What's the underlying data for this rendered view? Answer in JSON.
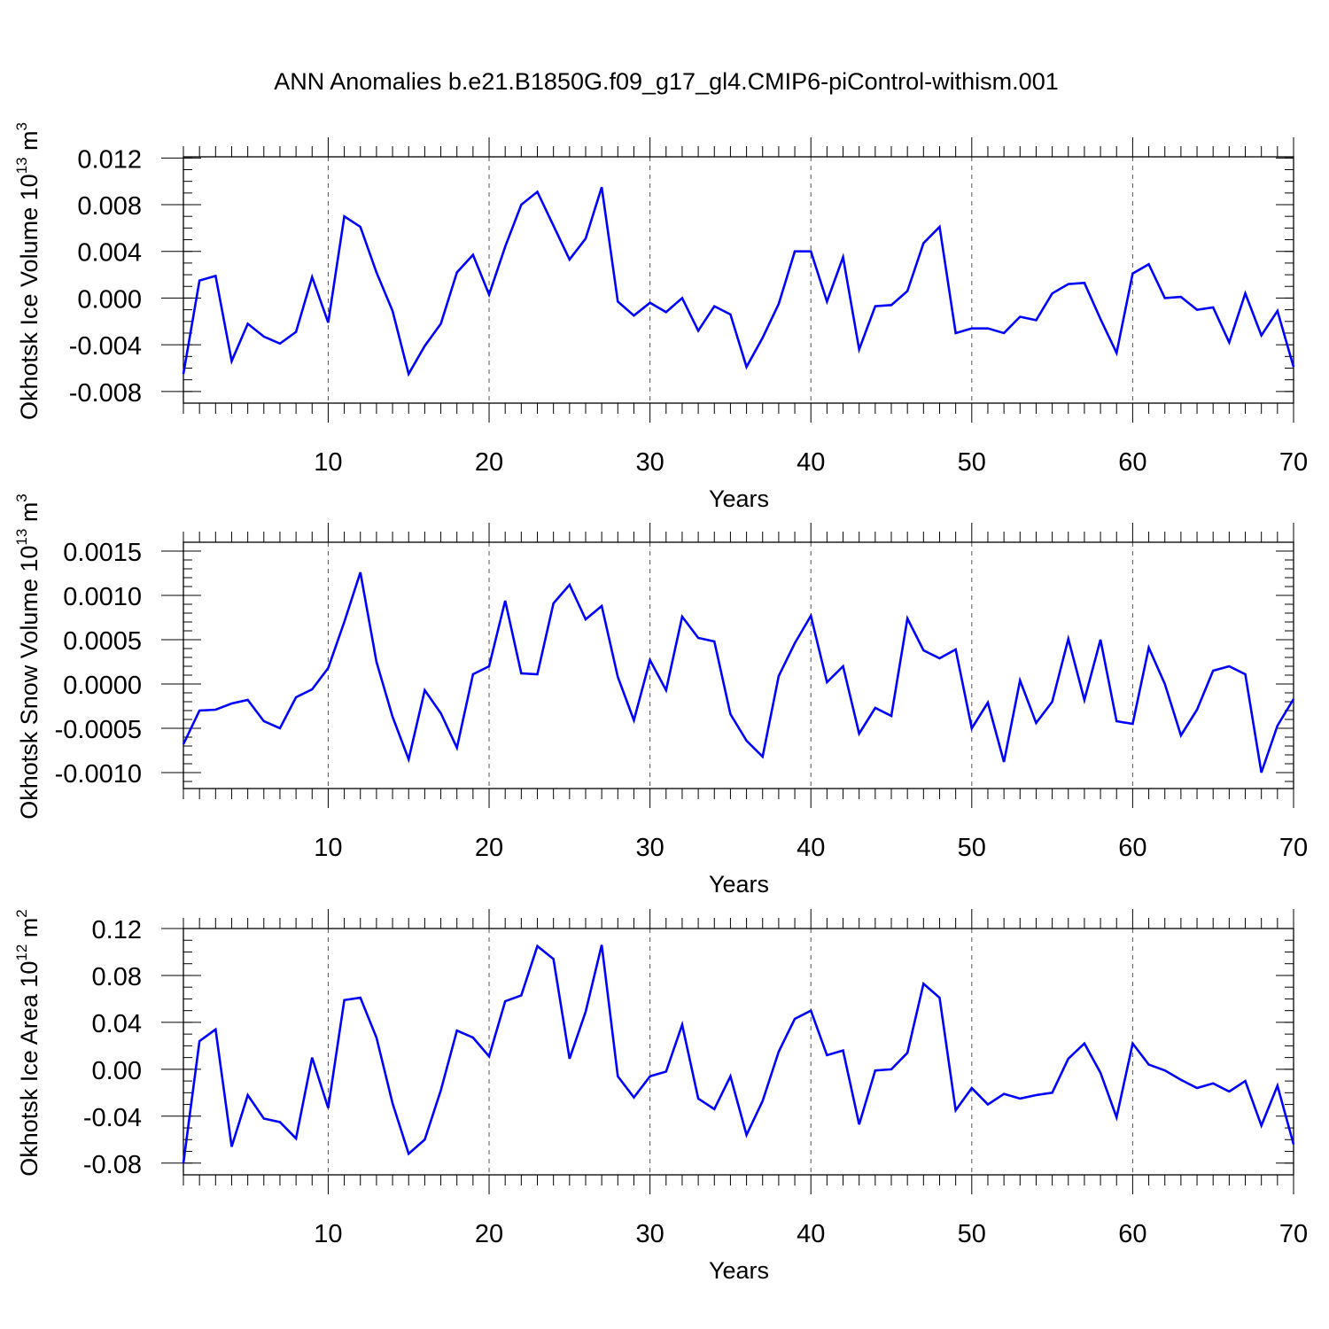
{
  "figure": {
    "title": "ANN Anomalies b.e21.B1850G.f09_g17_gl4.CMIP6-piControl-withism.001"
  },
  "chart_data": [
    {
      "type": "line",
      "ylabel_main": "Okhotsk Ice Volume 10",
      "ylabel_exp": "13",
      "ylabel_unit": " m",
      "ylabel_unit_exp": "3",
      "xlabel": "Years",
      "xlim": [
        1,
        70
      ],
      "ylim": [
        -0.009,
        0.0121
      ],
      "x_ticks": [
        10,
        20,
        30,
        40,
        50,
        60,
        70
      ],
      "y_ticks": [
        -0.008,
        -0.004,
        0.0,
        0.004,
        0.008,
        0.012
      ],
      "y_tick_labels": [
        "-0.008",
        "-0.004",
        "0.000",
        "0.004",
        "0.008",
        "0.012"
      ],
      "y_minor_step": 0.001,
      "grid_x": "dashed vertical at major x ticks",
      "line_color": "#0000ff",
      "x": [
        1,
        2,
        3,
        4,
        5,
        6,
        7,
        8,
        9,
        10,
        11,
        12,
        13,
        14,
        15,
        16,
        17,
        18,
        19,
        20,
        21,
        22,
        23,
        24,
        25,
        26,
        27,
        28,
        29,
        30,
        31,
        32,
        33,
        34,
        35,
        36,
        37,
        38,
        39,
        40,
        41,
        42,
        43,
        44,
        45,
        46,
        47,
        48,
        49,
        50,
        51,
        52,
        53,
        54,
        55,
        56,
        57,
        58,
        59,
        60,
        61,
        62,
        63,
        64,
        65,
        66,
        67,
        68,
        69,
        70
      ],
      "values": [
        -0.0065,
        0.0015,
        0.0019,
        -0.0054,
        -0.0022,
        -0.0033,
        -0.0039,
        -0.0029,
        0.0018,
        -0.0021,
        0.007,
        0.0061,
        0.0022,
        -0.0011,
        -0.0065,
        -0.0041,
        -0.0022,
        0.0022,
        0.0037,
        0.0003,
        0.0044,
        0.008,
        0.0091,
        0.0062,
        0.0033,
        0.0051,
        0.0095,
        -0.0003,
        -0.0015,
        -0.0004,
        -0.0012,
        0.0,
        -0.0028,
        -0.0007,
        -0.0014,
        -0.0059,
        -0.0034,
        -0.0005,
        0.004,
        0.004,
        -0.0003,
        0.0035,
        -0.0044,
        -0.0007,
        -0.0006,
        0.0006,
        0.0047,
        0.0061,
        -0.003,
        -0.0026,
        -0.0026,
        -0.003,
        -0.0016,
        -0.0019,
        0.0004,
        0.0012,
        0.0013,
        -0.0018,
        -0.0047,
        0.0021,
        0.0029,
        0.0,
        0.0001,
        -0.001,
        -0.0008,
        -0.0038,
        0.0004,
        -0.0032,
        -0.0011,
        -0.0059
      ]
    },
    {
      "type": "line",
      "ylabel_main": "Okhotsk Snow Volume 10",
      "ylabel_exp": "13",
      "ylabel_unit": " m",
      "ylabel_unit_exp": "3",
      "xlabel": "Years",
      "xlim": [
        1,
        70
      ],
      "ylim": [
        -0.00118,
        0.0016
      ],
      "x_ticks": [
        10,
        20,
        30,
        40,
        50,
        60,
        70
      ],
      "y_ticks": [
        -0.001,
        -0.0005,
        0.0,
        0.0005,
        0.001,
        0.0015
      ],
      "y_tick_labels": [
        "-0.0010",
        "-0.0005",
        "0.0000",
        "0.0005",
        "0.0010",
        "0.0015"
      ],
      "y_minor_step": 0.0001,
      "grid_x": "dashed vertical at major x ticks",
      "line_color": "#0000ff",
      "x": [
        1,
        2,
        3,
        4,
        5,
        6,
        7,
        8,
        9,
        10,
        11,
        12,
        13,
        14,
        15,
        16,
        17,
        18,
        19,
        20,
        21,
        22,
        23,
        24,
        25,
        26,
        27,
        28,
        29,
        30,
        31,
        32,
        33,
        34,
        35,
        36,
        37,
        38,
        39,
        40,
        41,
        42,
        43,
        44,
        45,
        46,
        47,
        48,
        49,
        50,
        51,
        52,
        53,
        54,
        55,
        56,
        57,
        58,
        59,
        60,
        61,
        62,
        63,
        64,
        65,
        66,
        67,
        68,
        69,
        70
      ],
      "values": [
        -0.00068,
        -0.0003,
        -0.00029,
        -0.00022,
        -0.00018,
        -0.00042,
        -0.0005,
        -0.00015,
        -6e-05,
        0.00018,
        0.0007,
        0.00126,
        0.00025,
        -0.00037,
        -0.00085,
        -7e-05,
        -0.00033,
        -0.00072,
        0.00011,
        0.0002,
        0.00094,
        0.00012,
        0.00011,
        0.00091,
        0.00112,
        0.00073,
        0.00088,
        8e-05,
        -0.00041,
        0.00027,
        -7e-05,
        0.00076,
        0.00052,
        0.00048,
        -0.00034,
        -0.00064,
        -0.00082,
        9e-05,
        0.00046,
        0.00077,
        2e-05,
        0.0002,
        -0.00056,
        -0.00027,
        -0.00036,
        0.00074,
        0.00038,
        0.00029,
        0.00039,
        -0.0005,
        -0.00021,
        -0.00088,
        4e-05,
        -0.00044,
        -0.0002,
        0.00051,
        -0.00018,
        0.0005,
        -0.00042,
        -0.00045,
        0.00041,
        0.0,
        -0.00058,
        -0.00029,
        0.00015,
        0.0002,
        0.00011,
        -0.001,
        -0.00047,
        -0.00017
      ]
    },
    {
      "type": "line",
      "ylabel_main": "Okhotsk Ice Area 10",
      "ylabel_exp": "12",
      "ylabel_unit": " m",
      "ylabel_unit_exp": "2",
      "xlabel": "Years",
      "xlim": [
        1,
        70
      ],
      "ylim": [
        -0.09,
        0.12
      ],
      "x_ticks": [
        10,
        20,
        30,
        40,
        50,
        60,
        70
      ],
      "y_ticks": [
        -0.08,
        -0.04,
        0.0,
        0.04,
        0.08,
        0.12
      ],
      "y_tick_labels": [
        "-0.08",
        "-0.04",
        "0.00",
        "0.04",
        "0.08",
        "0.12"
      ],
      "y_minor_step": 0.01,
      "grid_x": "dashed vertical at major x ticks",
      "line_color": "#0000ff",
      "x": [
        1,
        2,
        3,
        4,
        5,
        6,
        7,
        8,
        9,
        10,
        11,
        12,
        13,
        14,
        15,
        16,
        17,
        18,
        19,
        20,
        21,
        22,
        23,
        24,
        25,
        26,
        27,
        28,
        29,
        30,
        31,
        32,
        33,
        34,
        35,
        36,
        37,
        38,
        39,
        40,
        41,
        42,
        43,
        44,
        45,
        46,
        47,
        48,
        49,
        50,
        51,
        52,
        53,
        54,
        55,
        56,
        57,
        58,
        59,
        60,
        61,
        62,
        63,
        64,
        65,
        66,
        67,
        68,
        69,
        70
      ],
      "values": [
        -0.08,
        0.024,
        0.034,
        -0.066,
        -0.022,
        -0.042,
        -0.045,
        -0.059,
        0.01,
        -0.033,
        0.059,
        0.061,
        0.027,
        -0.029,
        -0.072,
        -0.06,
        -0.018,
        0.033,
        0.027,
        0.011,
        0.058,
        0.063,
        0.105,
        0.094,
        0.009,
        0.049,
        0.106,
        -0.006,
        -0.024,
        -0.006,
        -0.002,
        0.038,
        -0.025,
        -0.034,
        -0.006,
        -0.056,
        -0.027,
        0.015,
        0.043,
        0.05,
        0.012,
        0.016,
        -0.047,
        -0.001,
        0.0,
        0.014,
        0.073,
        0.061,
        -0.035,
        -0.016,
        -0.03,
        -0.021,
        -0.025,
        -0.022,
        -0.02,
        0.009,
        0.022,
        -0.003,
        -0.041,
        0.022,
        0.004,
        -0.001,
        -0.009,
        -0.016,
        -0.012,
        -0.019,
        -0.01,
        -0.048,
        -0.014,
        -0.064
      ]
    }
  ]
}
